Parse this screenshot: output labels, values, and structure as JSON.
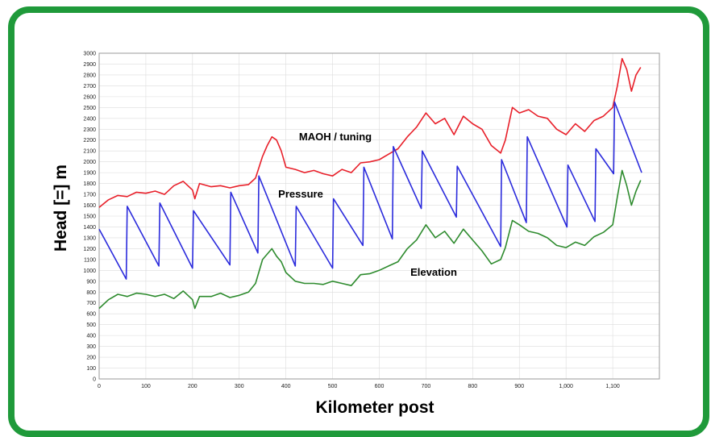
{
  "chart_data": {
    "type": "line",
    "title": "",
    "xlabel": "Kilometer post",
    "ylabel": "Head [=] m",
    "xlim": [
      0,
      1200
    ],
    "ylim": [
      0,
      3000
    ],
    "grid": true,
    "x_ticks": [
      0,
      100,
      200,
      300,
      400,
      500,
      600,
      700,
      800,
      900,
      1000,
      1100
    ],
    "x_tick_labels": [
      "0",
      "100",
      "200",
      "300",
      "400",
      "500",
      "600",
      "700",
      "800",
      "900",
      "1,000",
      "1,100"
    ],
    "y_ticks": [
      0,
      100,
      200,
      300,
      400,
      500,
      600,
      700,
      800,
      900,
      1000,
      1100,
      1200,
      1300,
      1400,
      1500,
      1600,
      1700,
      1800,
      1900,
      2000,
      2100,
      2200,
      2300,
      2400,
      2500,
      2600,
      2700,
      2800,
      2900,
      3000
    ],
    "series": [
      {
        "name": "MAOH / tuning",
        "color": "#e8202a",
        "x": [
          0,
          20,
          40,
          60,
          80,
          100,
          120,
          140,
          160,
          180,
          200,
          205,
          215,
          240,
          260,
          280,
          300,
          320,
          335,
          350,
          360,
          370,
          380,
          390,
          400,
          420,
          440,
          460,
          480,
          500,
          520,
          540,
          560,
          580,
          600,
          620,
          640,
          660,
          680,
          700,
          720,
          740,
          760,
          780,
          800,
          820,
          840,
          860,
          870,
          885,
          900,
          920,
          940,
          960,
          980,
          1000,
          1020,
          1040,
          1060,
          1080,
          1100,
          1110,
          1120,
          1130,
          1140,
          1150,
          1160
        ],
        "y": [
          1580,
          1650,
          1690,
          1680,
          1720,
          1710,
          1730,
          1700,
          1780,
          1820,
          1740,
          1660,
          1800,
          1770,
          1780,
          1760,
          1780,
          1790,
          1850,
          2050,
          2150,
          2230,
          2200,
          2100,
          1950,
          1930,
          1900,
          1920,
          1890,
          1870,
          1930,
          1900,
          1990,
          2000,
          2020,
          2070,
          2120,
          2230,
          2320,
          2450,
          2350,
          2400,
          2250,
          2420,
          2350,
          2300,
          2150,
          2080,
          2200,
          2500,
          2450,
          2480,
          2420,
          2400,
          2300,
          2250,
          2350,
          2280,
          2380,
          2420,
          2500,
          2700,
          2950,
          2850,
          2650,
          2800,
          2870
        ]
      },
      {
        "name": "Pressure",
        "color": "#2b2bdc",
        "x": [
          0,
          58,
          60,
          128,
          130,
          200,
          202,
          280,
          282,
          340,
          342,
          420,
          422,
          500,
          502,
          565,
          567,
          628,
          630,
          690,
          692,
          765,
          767,
          860,
          862,
          915,
          917,
          1002,
          1004,
          1062,
          1064,
          1102,
          1104,
          1162
        ],
        "y": [
          1380,
          920,
          1590,
          1040,
          1620,
          1020,
          1550,
          1050,
          1720,
          1160,
          1870,
          1040,
          1590,
          1020,
          1660,
          1230,
          1950,
          1290,
          2140,
          1570,
          2100,
          1490,
          1960,
          1220,
          2020,
          1440,
          2230,
          1400,
          1970,
          1450,
          2120,
          1890,
          2550,
          1900
        ]
      },
      {
        "name": "Elevation",
        "color": "#2e8b2e",
        "x": [
          0,
          20,
          40,
          60,
          80,
          100,
          120,
          140,
          160,
          180,
          200,
          205,
          215,
          240,
          260,
          280,
          300,
          320,
          335,
          350,
          360,
          370,
          380,
          390,
          400,
          420,
          440,
          460,
          480,
          500,
          520,
          540,
          560,
          580,
          600,
          620,
          640,
          660,
          680,
          700,
          720,
          740,
          760,
          780,
          800,
          820,
          840,
          860,
          870,
          885,
          900,
          920,
          940,
          960,
          980,
          1000,
          1020,
          1040,
          1060,
          1080,
          1100,
          1110,
          1120,
          1130,
          1140,
          1150,
          1160
        ],
        "y": [
          650,
          730,
          780,
          760,
          790,
          780,
          760,
          780,
          740,
          810,
          730,
          650,
          760,
          760,
          790,
          750,
          770,
          800,
          880,
          1100,
          1150,
          1200,
          1130,
          1080,
          980,
          900,
          880,
          880,
          870,
          900,
          880,
          860,
          960,
          970,
          1000,
          1040,
          1080,
          1200,
          1280,
          1420,
          1300,
          1360,
          1250,
          1380,
          1280,
          1180,
          1060,
          1100,
          1210,
          1460,
          1420,
          1360,
          1340,
          1300,
          1230,
          1210,
          1260,
          1230,
          1310,
          1350,
          1420,
          1680,
          1920,
          1780,
          1600,
          1730,
          1830
        ]
      }
    ]
  }
}
